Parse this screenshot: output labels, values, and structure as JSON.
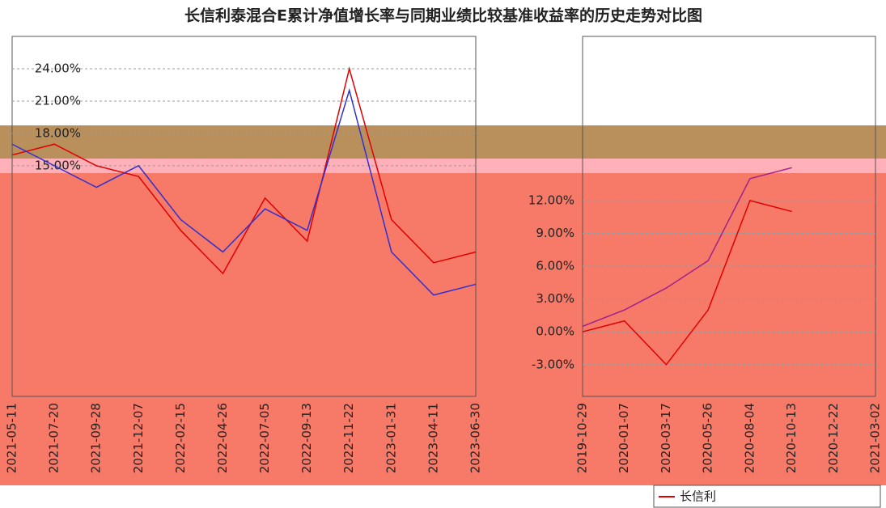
{
  "chart_data": [
    {
      "type": "line",
      "title": "长信利泰混合E累计净值增长率与同期业绩比较基准收益率的历史走势对比图",
      "x": [
        "2021-05-11",
        "2021-07-20",
        "2021-09-28",
        "2021-12-07",
        "2022-02-15",
        "2022-04-26",
        "2022-07-05",
        "2022-09-13",
        "2022-11-22",
        "2023-01-31",
        "2023-04-11",
        "2023-06-30"
      ],
      "series": [
        {
          "color": "#e00000",
          "values": [
            16,
            17,
            15,
            14,
            9,
            5,
            12,
            8,
            24,
            10,
            6,
            7
          ]
        },
        {
          "color": "#3030d0",
          "values": [
            17,
            15,
            13,
            15,
            10,
            7,
            11,
            9,
            22,
            7,
            3,
            4
          ]
        }
      ],
      "ylim": [
        -6.4,
        27
      ],
      "yticks": [
        {
          "value": 15,
          "label": "15.00%"
        },
        {
          "value": 18,
          "label": "18.00%"
        },
        {
          "value": 21,
          "label": "21.00%"
        },
        {
          "value": 24,
          "label": "24.00%"
        }
      ],
      "grid": true
    },
    {
      "type": "line",
      "x": [
        "2019-10-29",
        "2020-01-07",
        "2020-03-17",
        "2020-05-26",
        "2020-08-04",
        "2020-10-13",
        "2020-12-22",
        "2021-03-02"
      ],
      "series": [
        {
          "name": "长信利",
          "color": "#e00000",
          "values": [
            0,
            1,
            -3,
            2,
            12,
            11,
            null,
            null
          ]
        },
        {
          "color": "#a0208a",
          "values": [
            0.5,
            2,
            4,
            6.5,
            14,
            15,
            null,
            null
          ]
        }
      ],
      "ylim": [
        -5.9,
        27
      ],
      "yticks": [
        {
          "value": -3,
          "label": "-3.00%"
        },
        {
          "value": 0,
          "label": "0.00%"
        },
        {
          "value": 3,
          "label": "3.00%"
        },
        {
          "value": 6,
          "label": "6.00%"
        },
        {
          "value": 9,
          "label": "9.00%"
        },
        {
          "value": 12,
          "label": "12.00%"
        }
      ],
      "grid": true
    }
  ]
}
